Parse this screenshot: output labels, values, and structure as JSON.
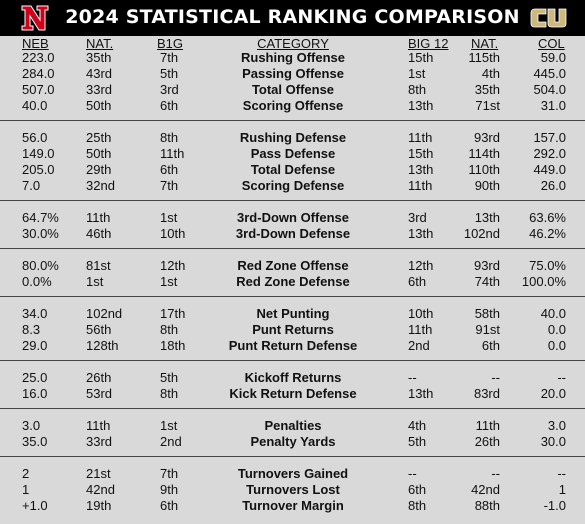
{
  "title": "2024 STATISTICAL RANKING COMPARISON",
  "logos": {
    "left": "nebraska-n-logo",
    "right": "colorado-cu-logo",
    "nebraska_red": "#d0021b",
    "colorado_gold": "#cfb87c"
  },
  "columns": {
    "neb": "NEB",
    "nat_left": "NAT.",
    "b1g": "B1G",
    "category": "CATEGORY",
    "big12": "BIG 12",
    "nat_right": "NAT.",
    "col": "COL"
  },
  "sections": [
    {
      "rows": [
        {
          "neb": "223.0",
          "nat_l": "35th",
          "b1g": "7th",
          "category": "Rushing Offense",
          "big12": "15th",
          "nat_r": "115th",
          "col": "59.0"
        },
        {
          "neb": "284.0",
          "nat_l": "43rd",
          "b1g": "5th",
          "category": "Passing Offense",
          "big12": "1st",
          "nat_r": "4th",
          "col": "445.0"
        },
        {
          "neb": "507.0",
          "nat_l": "33rd",
          "b1g": "3rd",
          "category": "Total Offense",
          "big12": "8th",
          "nat_r": "35th",
          "col": "504.0"
        },
        {
          "neb": "40.0",
          "nat_l": "50th",
          "b1g": "6th",
          "category": "Scoring Offense",
          "big12": "13th",
          "nat_r": "71st",
          "col": "31.0"
        }
      ]
    },
    {
      "rows": [
        {
          "neb": "56.0",
          "nat_l": "25th",
          "b1g": "8th",
          "category": "Rushing Defense",
          "big12": "11th",
          "nat_r": "93rd",
          "col": "157.0"
        },
        {
          "neb": "149.0",
          "nat_l": "50th",
          "b1g": "11th",
          "category": "Pass Defense",
          "big12": "15th",
          "nat_r": "114th",
          "col": "292.0"
        },
        {
          "neb": "205.0",
          "nat_l": "29th",
          "b1g": "6th",
          "category": "Total Defense",
          "big12": "13th",
          "nat_r": "110th",
          "col": "449.0"
        },
        {
          "neb": "7.0",
          "nat_l": "32nd",
          "b1g": "7th",
          "category": "Scoring Defense",
          "big12": "11th",
          "nat_r": "90th",
          "col": "26.0"
        }
      ]
    },
    {
      "rows": [
        {
          "neb": "64.7%",
          "nat_l": "11th",
          "b1g": "1st",
          "category": "3rd-Down Offense",
          "big12": "3rd",
          "nat_r": "13th",
          "col": "63.6%"
        },
        {
          "neb": "30.0%",
          "nat_l": "46th",
          "b1g": "10th",
          "category": "3rd-Down Defense",
          "big12": "13th",
          "nat_r": "102nd",
          "col": "46.2%"
        }
      ]
    },
    {
      "rows": [
        {
          "neb": "80.0%",
          "nat_l": "81st",
          "b1g": "12th",
          "category": "Red Zone Offense",
          "big12": "12th",
          "nat_r": "93rd",
          "col": "75.0%"
        },
        {
          "neb": "0.0%",
          "nat_l": "1st",
          "b1g": "1st",
          "category": "Red Zone Defense",
          "big12": "6th",
          "nat_r": "74th",
          "col": "100.0%"
        }
      ]
    },
    {
      "rows": [
        {
          "neb": "34.0",
          "nat_l": "102nd",
          "b1g": "17th",
          "category": "Net Punting",
          "big12": "10th",
          "nat_r": "58th",
          "col": "40.0"
        },
        {
          "neb": "8.3",
          "nat_l": "56th",
          "b1g": "8th",
          "category": "Punt Returns",
          "big12": "11th",
          "nat_r": "91st",
          "col": "0.0"
        },
        {
          "neb": "29.0",
          "nat_l": "128th",
          "b1g": "18th",
          "category": "Punt Return Defense",
          "big12": "2nd",
          "nat_r": "6th",
          "col": "0.0"
        }
      ]
    },
    {
      "rows": [
        {
          "neb": "25.0",
          "nat_l": "26th",
          "b1g": "5th",
          "category": "Kickoff Returns",
          "big12": "--",
          "nat_r": "--",
          "col": "--"
        },
        {
          "neb": "16.0",
          "nat_l": "53rd",
          "b1g": "8th",
          "category": "Kick Return Defense",
          "big12": "13th",
          "nat_r": "83rd",
          "col": "20.0"
        }
      ]
    },
    {
      "rows": [
        {
          "neb": "3.0",
          "nat_l": "11th",
          "b1g": "1st",
          "category": "Penalties",
          "big12": "4th",
          "nat_r": "11th",
          "col": "3.0"
        },
        {
          "neb": "35.0",
          "nat_l": "33rd",
          "b1g": "2nd",
          "category": "Penalty Yards",
          "big12": "5th",
          "nat_r": "26th",
          "col": "30.0"
        }
      ]
    },
    {
      "rows": [
        {
          "neb": "2",
          "nat_l": "21st",
          "b1g": "7th",
          "category": "Turnovers Gained",
          "big12": "--",
          "nat_r": "--",
          "col": "--"
        },
        {
          "neb": "1",
          "nat_l": "42nd",
          "b1g": "9th",
          "category": "Turnovers Lost",
          "big12": "6th",
          "nat_r": "42nd",
          "col": "1"
        },
        {
          "neb": "+1.0",
          "nat_l": "19th",
          "b1g": "6th",
          "category": "Turnover Margin",
          "big12": "8th",
          "nat_r": "88th",
          "col": "-1.0"
        }
      ]
    }
  ]
}
